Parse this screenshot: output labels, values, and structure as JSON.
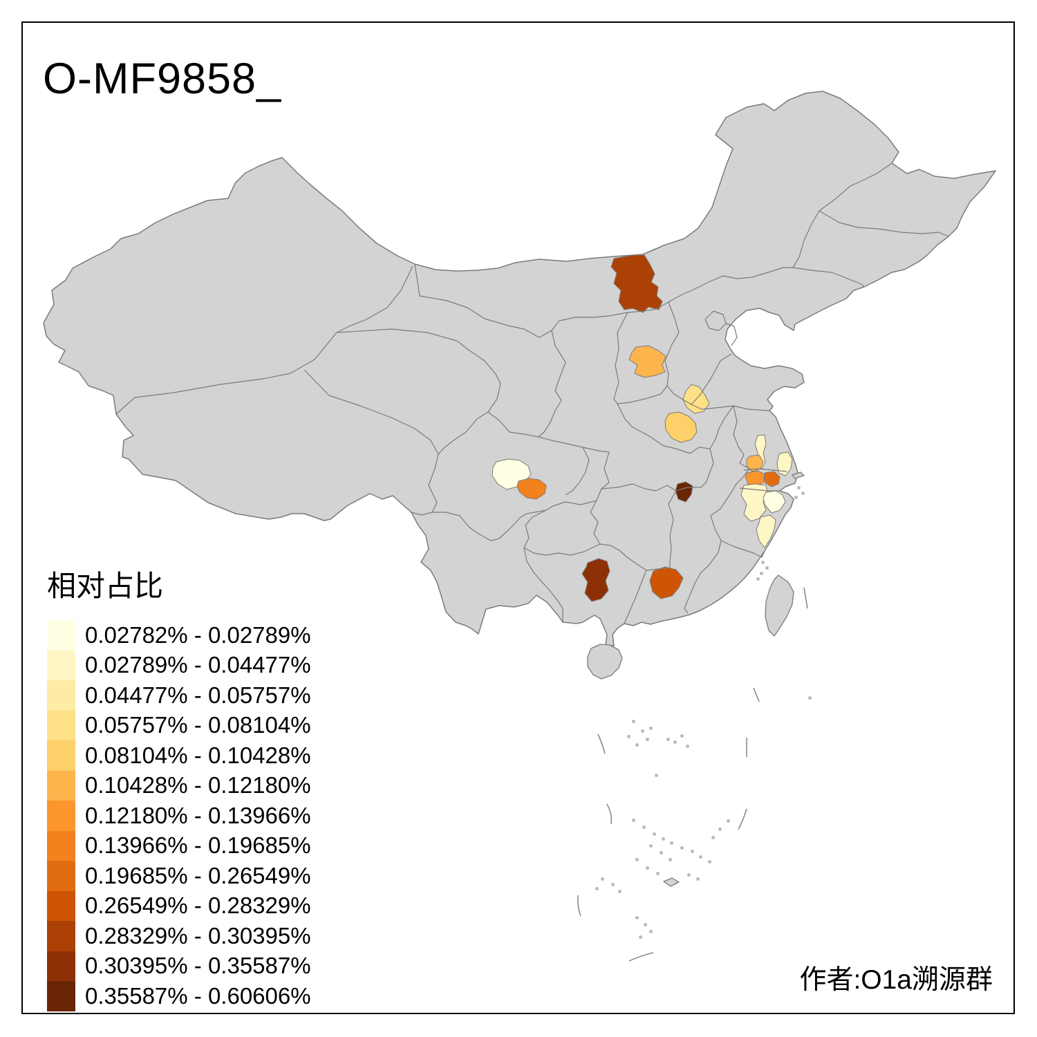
{
  "title": "O-MF9858_",
  "legend": {
    "title": "相对占比",
    "bins": [
      {
        "range": "0.02782% - 0.02789%",
        "color": "#FFFFE3"
      },
      {
        "range": "0.02789% - 0.04477%",
        "color": "#FFF6C6"
      },
      {
        "range": "0.04477% - 0.05757%",
        "color": "#FEECA4"
      },
      {
        "range": "0.05757% - 0.08104%",
        "color": "#FEE087"
      },
      {
        "range": "0.08104% - 0.10428%",
        "color": "#FDD06A"
      },
      {
        "range": "0.10428% - 0.12180%",
        "color": "#FDB44D"
      },
      {
        "range": "0.12180% - 0.13966%",
        "color": "#FB962C"
      },
      {
        "range": "0.13966% - 0.19685%",
        "color": "#F2821D"
      },
      {
        "range": "0.19685% - 0.26549%",
        "color": "#E26C10"
      },
      {
        "range": "0.26549% - 0.28329%",
        "color": "#CE5506"
      },
      {
        "range": "0.28329% - 0.30395%",
        "color": "#AC4106"
      },
      {
        "range": "0.30395% - 0.35587%",
        "color": "#8E3005"
      },
      {
        "range": "0.35587% - 0.60606%",
        "color": "#6A2505"
      }
    ]
  },
  "attribution": "作者:O1a溯源群",
  "map": {
    "land_color": "#D3D3D3",
    "border_color": "#7A7A7A",
    "background_color": "#FFFFFF",
    "frame_color": "#000000",
    "regions": [
      {
        "name": "highlighted-region-1",
        "bin": 11,
        "geo": "r1"
      },
      {
        "name": "highlighted-region-2",
        "bin": 6,
        "geo": "r2"
      },
      {
        "name": "highlighted-region-3",
        "bin": 4,
        "geo": "r3"
      },
      {
        "name": "highlighted-region-4",
        "bin": 5,
        "geo": "r4"
      },
      {
        "name": "highlighted-region-5",
        "bin": 1,
        "geo": "r5"
      },
      {
        "name": "highlighted-region-6",
        "bin": 8,
        "geo": "r6"
      },
      {
        "name": "highlighted-region-7",
        "bin": 13,
        "geo": "r7"
      },
      {
        "name": "highlighted-region-8",
        "bin": 2,
        "geo": "r8"
      },
      {
        "name": "highlighted-region-9",
        "bin": 6,
        "geo": "r9"
      },
      {
        "name": "highlighted-region-10",
        "bin": 2,
        "geo": "r10"
      },
      {
        "name": "highlighted-region-11",
        "bin": 7,
        "geo": "r11"
      },
      {
        "name": "highlighted-region-12",
        "bin": 9,
        "geo": "r12"
      },
      {
        "name": "highlighted-region-13",
        "bin": 2,
        "geo": "r13"
      },
      {
        "name": "highlighted-region-14",
        "bin": 1,
        "geo": "r14"
      },
      {
        "name": "highlighted-region-15",
        "bin": 2,
        "geo": "r15"
      },
      {
        "name": "highlighted-region-16",
        "bin": 12,
        "geo": "r16"
      },
      {
        "name": "highlighted-region-17",
        "bin": 10,
        "geo": "r17"
      }
    ]
  }
}
